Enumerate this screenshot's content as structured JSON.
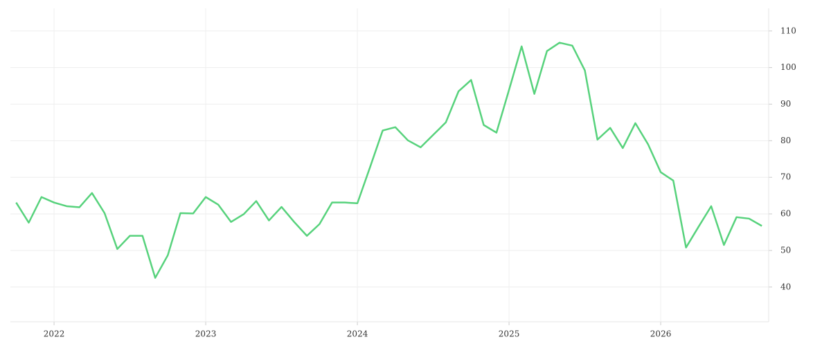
{
  "chart_data": {
    "type": "line",
    "x": [
      2021.75,
      2021.833,
      2021.917,
      2022,
      2022.083,
      2022.167,
      2022.25,
      2022.333,
      2022.417,
      2022.5,
      2022.583,
      2022.667,
      2022.75,
      2022.833,
      2022.917,
      2023,
      2023.083,
      2023.167,
      2023.25,
      2023.333,
      2023.417,
      2023.5,
      2023.583,
      2023.667,
      2023.75,
      2023.833,
      2023.917,
      2024,
      2024.083,
      2024.167,
      2024.25,
      2024.333,
      2024.417,
      2024.5,
      2024.583,
      2024.667,
      2024.75,
      2024.833,
      2024.917,
      2025,
      2025.083,
      2025.167,
      2025.25,
      2025.333,
      2025.417,
      2025.5,
      2025.583,
      2025.667,
      2025.75,
      2025.833,
      2025.917,
      2026,
      2026.083,
      2026.167,
      2026.25,
      2026.333,
      2026.417,
      2026.5,
      2026.583,
      2026.667
    ],
    "values": [
      63.1,
      57.6,
      64.6,
      63.1,
      62.1,
      61.8,
      65.7,
      60.2,
      50.4,
      54.0,
      54.0,
      42.5,
      48.7,
      60.2,
      60.1,
      64.6,
      62.5,
      57.8,
      59.9,
      63.5,
      58.2,
      61.9,
      57.8,
      54.0,
      57.2,
      63.1,
      63.1,
      62.9,
      72.7,
      82.8,
      83.7,
      80.1,
      78.2,
      81.6,
      85.0,
      93.5,
      96.6,
      84.3,
      82.2,
      93.9,
      105.8,
      92.8,
      104.5,
      106.8,
      106.0,
      99.2,
      80.3,
      83.5,
      78.0,
      84.8,
      79.0,
      71.4,
      69.1,
      50.8,
      56.5,
      62.1,
      51.5,
      59.1,
      58.7,
      56.7
    ],
    "color": "#57d27c",
    "xlim": [
      2021.712,
      2026.712
    ],
    "xticks": [
      2022,
      2023,
      2024,
      2025,
      2026
    ],
    "ylim": [
      30.5,
      116.2
    ],
    "yticks": [
      40,
      50,
      60,
      70,
      80,
      90,
      100,
      110
    ],
    "grid": true
  }
}
